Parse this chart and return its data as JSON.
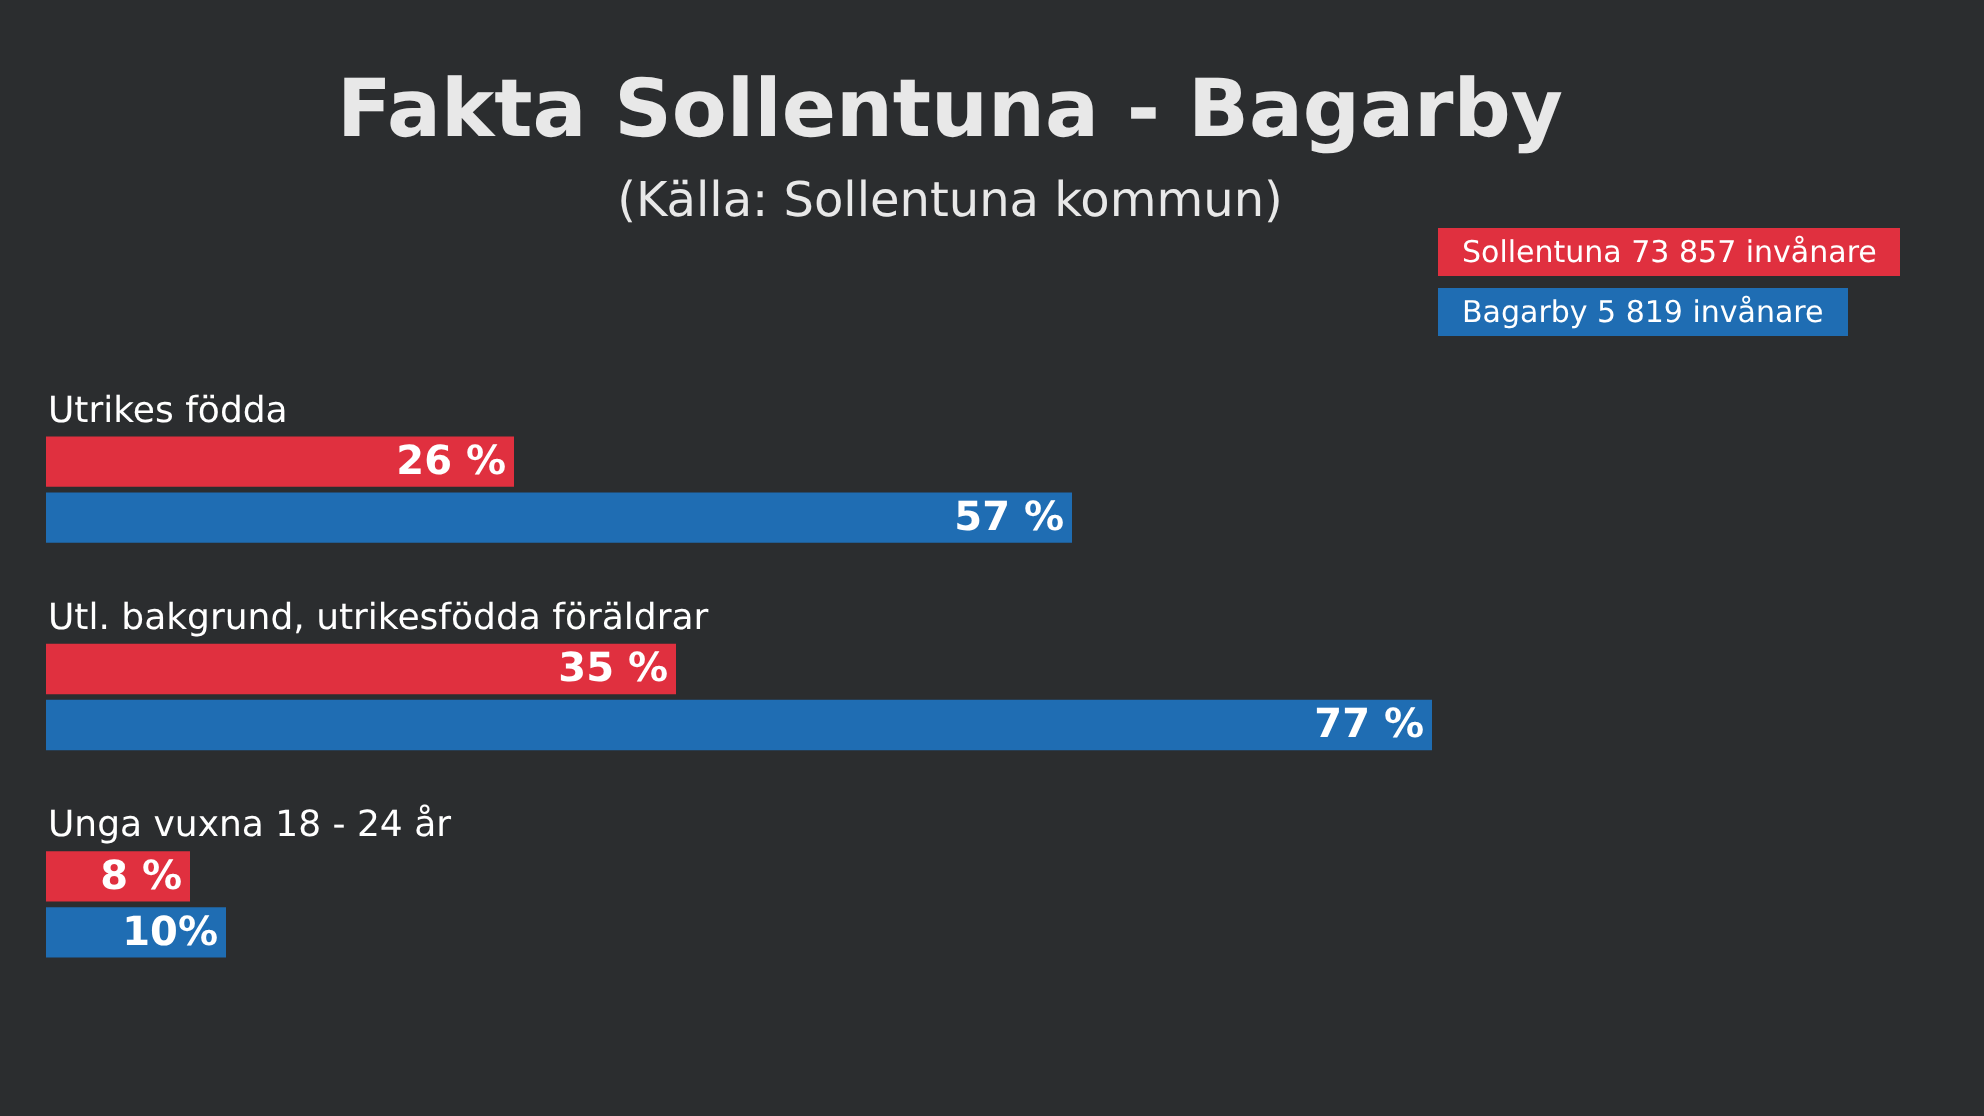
{
  "chart_data": {
    "type": "bar",
    "orientation": "horizontal",
    "title": "Fakta Sollentuna - Bagarby",
    "subtitle": "(Källa: Sollentuna kommun)",
    "categories": [
      "Utrikes födda",
      "Utl. bakgrund, utrikesfödda föräldrar",
      "Unga vuxna 18 - 24 år"
    ],
    "series": [
      {
        "name": "Sollentuna 73 857 invånare",
        "color": "#e0303f",
        "values": [
          26,
          35,
          8
        ],
        "value_labels": [
          "26 %",
          "35 %",
          "8 %"
        ]
      },
      {
        "name": "Bagarby 5 819 invånare",
        "color": "#1f6db3",
        "values": [
          57,
          77,
          10
        ],
        "value_labels": [
          "57 %",
          "77 %",
          "10%"
        ]
      }
    ],
    "legend": "top right",
    "tick_labels": false
  }
}
